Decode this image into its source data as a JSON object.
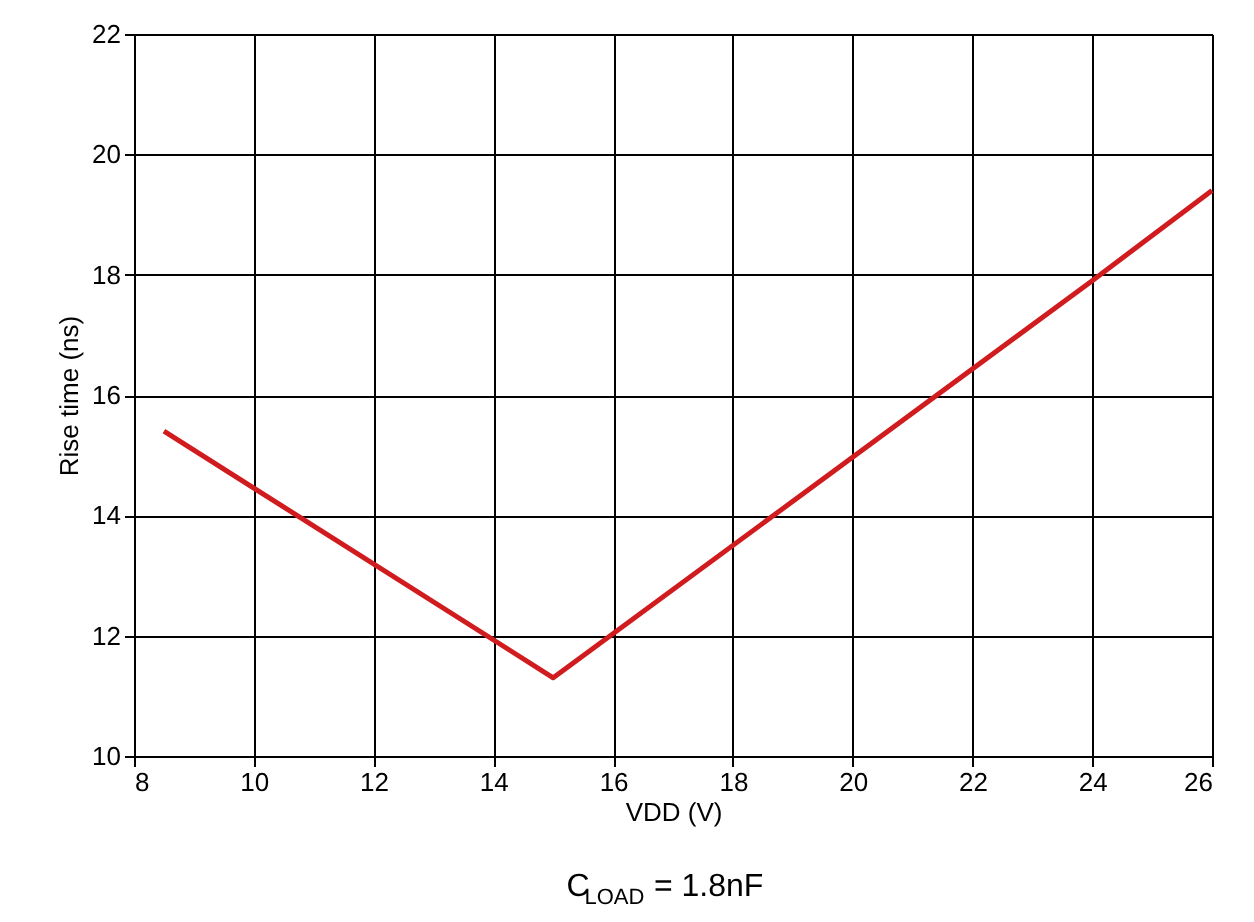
{
  "chart_data": {
    "type": "line",
    "xlabel": "VDD (V)",
    "ylabel": "Rise time (ns)",
    "x": [
      8.5,
      15,
      24,
      26
    ],
    "series": [
      {
        "color": "#d01c1f",
        "values": [
          15.4,
          11.3,
          17.9,
          19.4
        ]
      }
    ],
    "xlim": [
      8,
      26
    ],
    "xticks": [
      8,
      10,
      12,
      14,
      16,
      18,
      20,
      22,
      24,
      26
    ],
    "ylim": [
      10,
      22
    ],
    "yticks": [
      10,
      12,
      14,
      16,
      18,
      20,
      22
    ],
    "grid": true,
    "marker": "none",
    "line_style": "solid",
    "annotations": [
      "C$_{LOAD}$ = 1.8nF"
    ]
  }
}
